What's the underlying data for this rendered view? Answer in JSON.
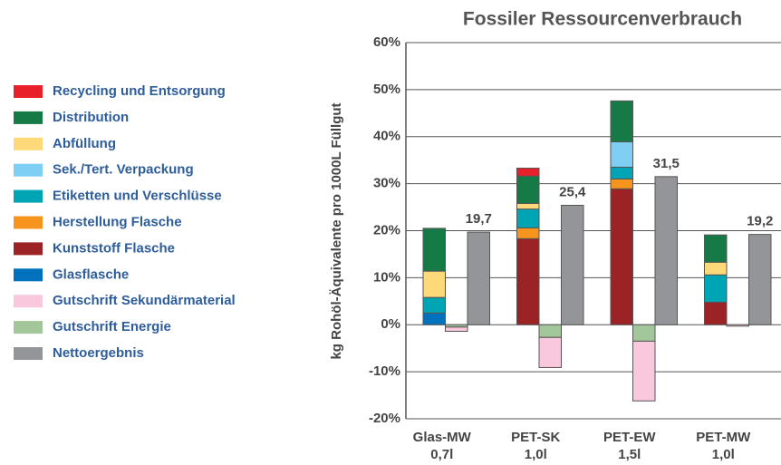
{
  "chart_data": {
    "type": "bar",
    "title": "Fossiler Ressourcenverbrauch",
    "y_label": "kg Rohöl-Äquivalente pro 1000L Füllgut",
    "categories": [
      "Glas-MW",
      "PET-SK",
      "PET-EW",
      "PET-MW"
    ],
    "category_sublabels": [
      "0,7l",
      "1,0l",
      "1,5l",
      "1,0l"
    ],
    "ylim": [
      -20,
      60
    ],
    "yticks": [
      {
        "value": -20,
        "label": "-20%"
      },
      {
        "value": -10,
        "label": "-10%"
      },
      {
        "value": 0,
        "label": "0%"
      },
      {
        "value": 10,
        "label": "10%"
      },
      {
        "value": 20,
        "label": "20%"
      },
      {
        "value": 30,
        "label": "30%"
      },
      {
        "value": 40,
        "label": "40%"
      },
      {
        "value": 50,
        "label": "50%"
      },
      {
        "value": 60,
        "label": "60%"
      }
    ],
    "grid": true,
    "legend": "left",
    "series": [
      {
        "name": "Recycling und Entsorgung",
        "color": "#e8202a",
        "values": [
          null,
          1.7,
          null,
          null
        ]
      },
      {
        "name": "Distribution",
        "color": "#157a45",
        "values": [
          9.1,
          5.8,
          8.7,
          5.8
        ]
      },
      {
        "name": "Abfüllung",
        "color": "#fdd97a",
        "values": [
          5.6,
          1.2,
          null,
          2.7
        ]
      },
      {
        "name": "Sek./Tert. Verpackung",
        "color": "#7fcef4",
        "values": [
          null,
          null,
          5.4,
          null
        ]
      },
      {
        "name": "Etiketten und Verschlüsse",
        "color": "#00a5b5",
        "values": [
          3.3,
          4.0,
          2.5,
          5.8
        ]
      },
      {
        "name": "Herstellung Flasche",
        "color": "#f7941d",
        "values": [
          null,
          2.3,
          2.1,
          null
        ]
      },
      {
        "name": "Kunststoff Flasche",
        "color": "#9b2326",
        "values": [
          null,
          18.3,
          28.9,
          4.8
        ]
      },
      {
        "name": "Glasflasche",
        "color": "#0071bc",
        "values": [
          2.5,
          null,
          null,
          null
        ]
      },
      {
        "name": "Gutschrift Sekundärmaterial",
        "color": "#f9c8dc",
        "values": [
          -0.9,
          -6.4,
          -12.7,
          -0.3
        ]
      },
      {
        "name": "Gutschrift Energie",
        "color": "#a3c79a",
        "values": [
          -0.5,
          -2.7,
          -3.5,
          null
        ]
      },
      {
        "name": "Nettoergebnis",
        "color": "#939598",
        "total": true,
        "values": [
          19.7,
          25.4,
          31.5,
          19.2
        ],
        "value_labels": [
          "19,7",
          "25,4",
          "31,5",
          "19,2"
        ]
      }
    ]
  }
}
